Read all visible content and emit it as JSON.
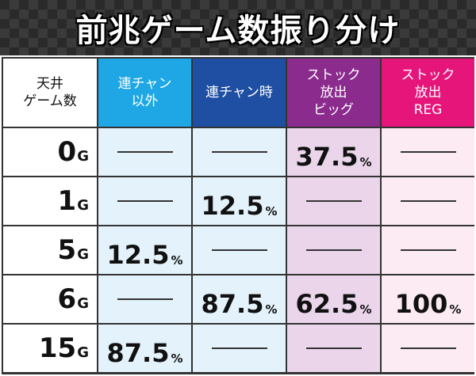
{
  "title": "前兆ゲーム数振り分け",
  "colors": {
    "header_col1": "#1ea7e4",
    "header_col2": "#1f4fa3",
    "header_col3": "#8a2b8d",
    "header_col4": "#e5157a"
  },
  "table": {
    "corner_header": "天井\nゲーム数",
    "columns": [
      "連チャン\n以外",
      "連チャン時",
      "ストック\n放出\nビッグ",
      "ストック\n放出\nREG"
    ],
    "unit_g": "G",
    "unit_pct": "%",
    "rows": [
      {
        "game": "0",
        "cells": [
          "",
          "",
          "37.5",
          ""
        ]
      },
      {
        "game": "1",
        "cells": [
          "",
          "12.5",
          "",
          ""
        ]
      },
      {
        "game": "5",
        "cells": [
          "12.5",
          "",
          "",
          ""
        ]
      },
      {
        "game": "6",
        "cells": [
          "",
          "87.5",
          "62.5",
          "100"
        ]
      },
      {
        "game": "15",
        "cells": [
          "87.5",
          "",
          "",
          ""
        ]
      }
    ]
  }
}
